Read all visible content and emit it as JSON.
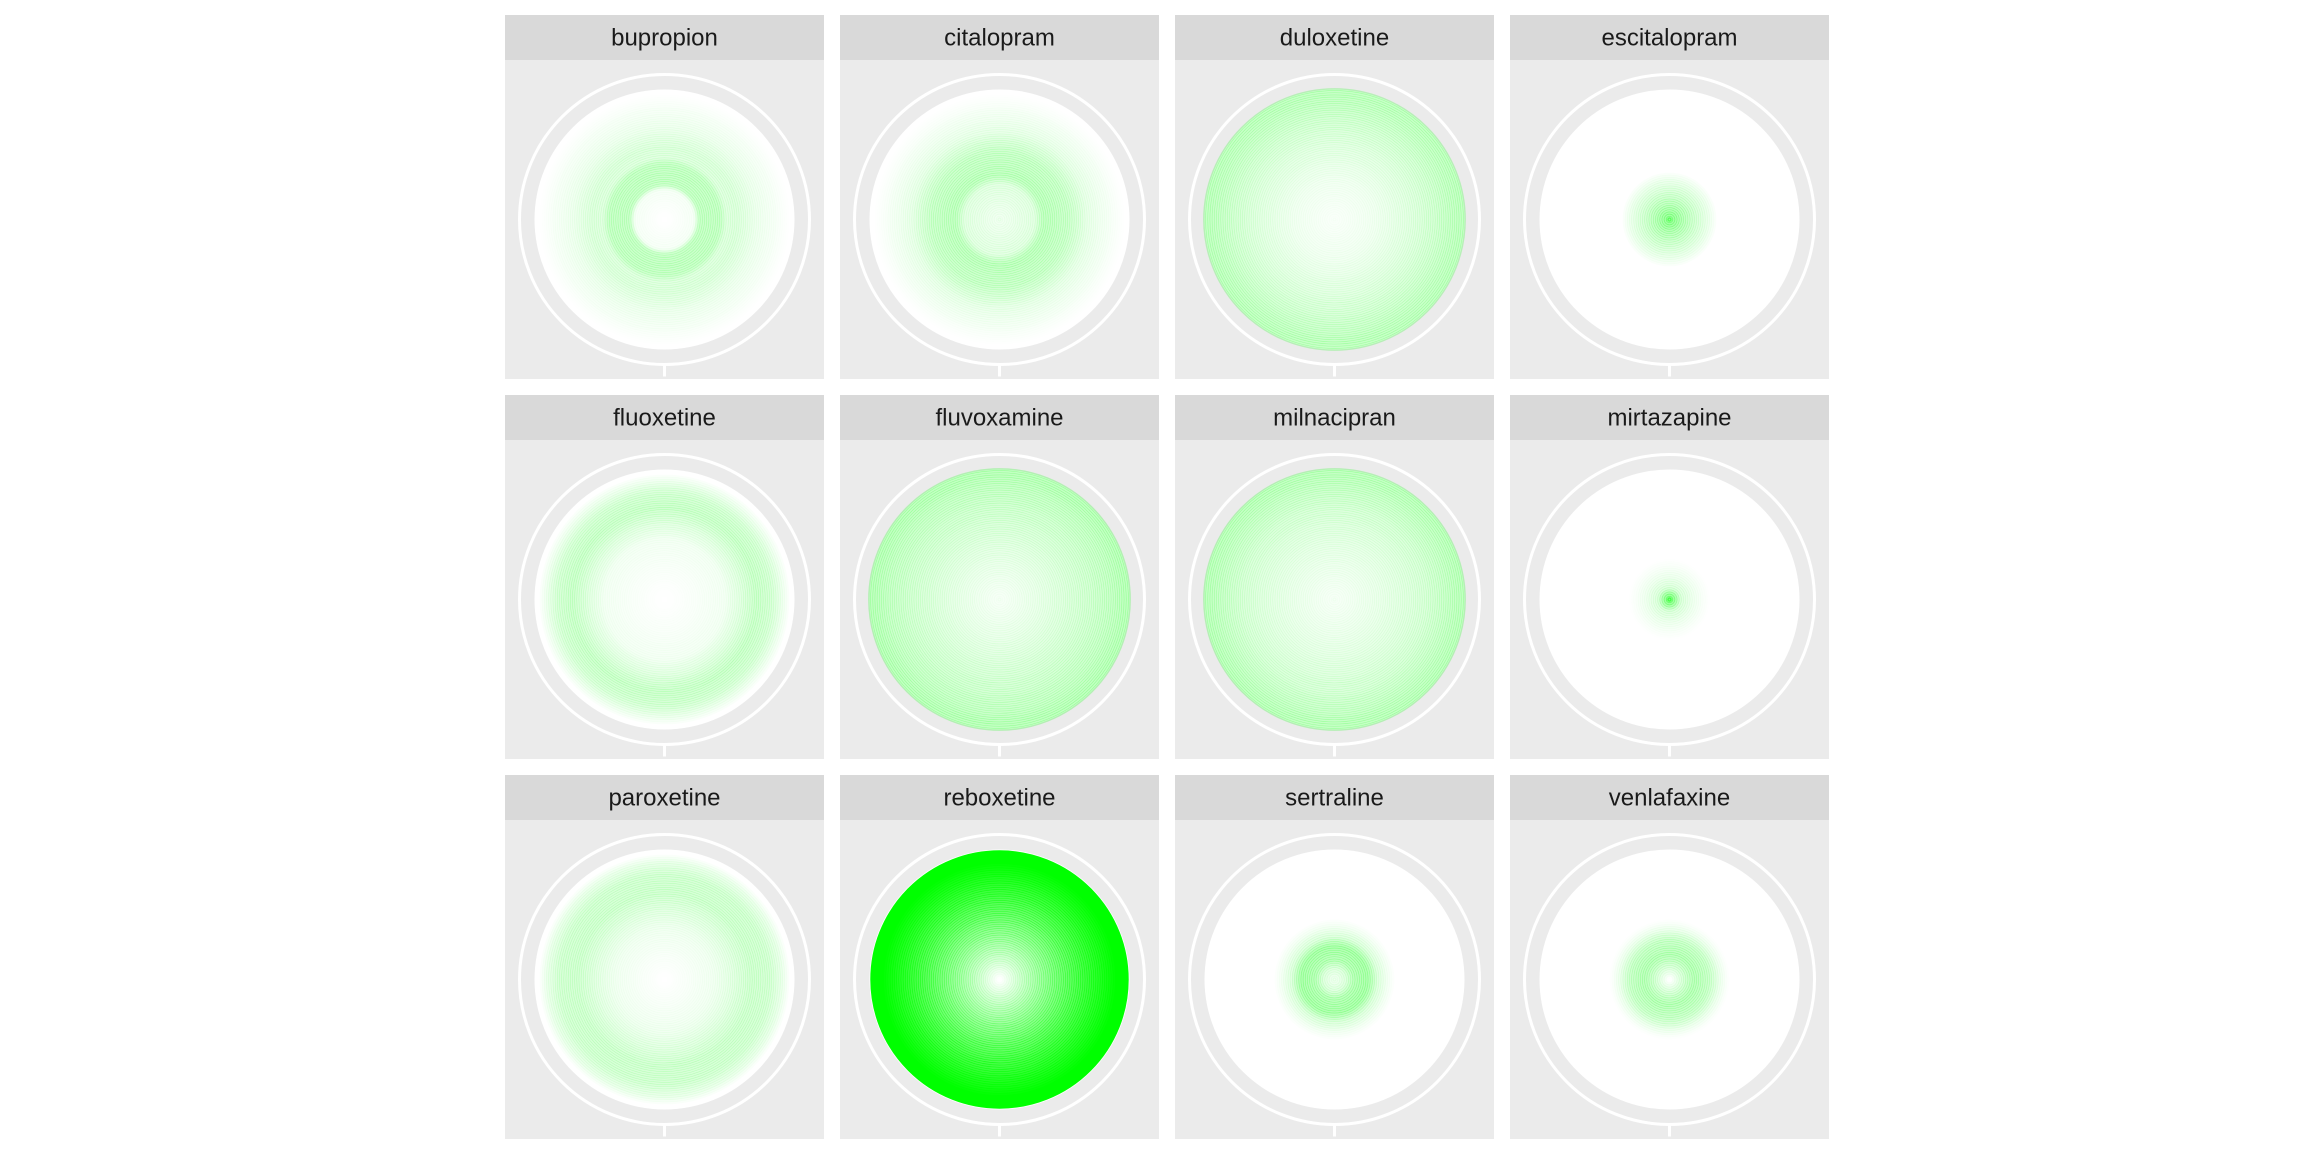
{
  "chart_data": {
    "type": "radial-density",
    "facet_layout": {
      "columns": 4,
      "rows": 3
    },
    "colors": {
      "panel_background": "#EBEBEB",
      "strip_background": "#D9D9D9",
      "strip_text": "#1A1A1A",
      "plot_fill": "#FFFFFF",
      "grid": "#FFFFFF",
      "density": "#00FF00"
    },
    "facets": [
      {
        "label": "bupropion",
        "rings": [
          [
            0.0,
            0.0
          ],
          [
            0.22,
            0.03
          ],
          [
            0.26,
            0.2
          ],
          [
            0.42,
            0.2
          ],
          [
            0.47,
            0.11
          ],
          [
            0.55,
            0.12
          ],
          [
            0.7,
            0.06
          ],
          [
            0.84,
            0.03
          ],
          [
            0.96,
            0.0
          ]
        ]
      },
      {
        "label": "citalopram",
        "rings": [
          [
            0.0,
            0.05
          ],
          [
            0.26,
            0.1
          ],
          [
            0.33,
            0.22
          ],
          [
            0.52,
            0.18
          ],
          [
            0.67,
            0.08
          ],
          [
            0.8,
            0.04
          ],
          [
            0.96,
            0.0
          ]
        ]
      },
      {
        "label": "duloxetine",
        "rings": [
          [
            0.0,
            0.02
          ],
          [
            0.3,
            0.05
          ],
          [
            0.55,
            0.1
          ],
          [
            0.75,
            0.15
          ],
          [
            0.86,
            0.19
          ],
          [
            0.96,
            0.22
          ]
        ]
      },
      {
        "label": "escitalopram",
        "rings": [
          [
            0.0,
            0.4
          ],
          [
            0.1,
            0.24
          ],
          [
            0.2,
            0.14
          ],
          [
            0.3,
            0.06
          ],
          [
            0.36,
            0.0
          ]
        ]
      },
      {
        "label": "fluoxetine",
        "rings": [
          [
            0.0,
            0.0
          ],
          [
            0.45,
            0.04
          ],
          [
            0.57,
            0.1
          ],
          [
            0.7,
            0.18
          ],
          [
            0.82,
            0.14
          ],
          [
            0.9,
            0.06
          ],
          [
            0.96,
            0.0
          ]
        ]
      },
      {
        "label": "fluvoxamine",
        "rings": [
          [
            0.0,
            0.03
          ],
          [
            0.3,
            0.08
          ],
          [
            0.5,
            0.12
          ],
          [
            0.7,
            0.16
          ],
          [
            0.85,
            0.2
          ],
          [
            0.96,
            0.24
          ]
        ]
      },
      {
        "label": "milnacipran",
        "rings": [
          [
            0.0,
            0.03
          ],
          [
            0.3,
            0.07
          ],
          [
            0.5,
            0.1
          ],
          [
            0.7,
            0.14
          ],
          [
            0.85,
            0.19
          ],
          [
            0.96,
            0.23
          ]
        ]
      },
      {
        "label": "mirtazapine",
        "rings": [
          [
            0.0,
            0.5
          ],
          [
            0.08,
            0.12
          ],
          [
            0.18,
            0.05
          ],
          [
            0.3,
            0.0
          ]
        ]
      },
      {
        "label": "paroxetine",
        "rings": [
          [
            0.0,
            0.0
          ],
          [
            0.38,
            0.05
          ],
          [
            0.52,
            0.1
          ],
          [
            0.66,
            0.16
          ],
          [
            0.8,
            0.15
          ],
          [
            0.9,
            0.07
          ],
          [
            0.96,
            0.0
          ]
        ]
      },
      {
        "label": "reboxetine",
        "rings": [
          [
            0.0,
            0.0
          ],
          [
            0.89,
            1.0
          ],
          [
            0.98,
            1.0
          ],
          [
            0.985,
            0.0
          ]
        ]
      },
      {
        "label": "sertraline",
        "rings": [
          [
            0.0,
            0.05
          ],
          [
            0.08,
            0.12
          ],
          [
            0.14,
            0.25
          ],
          [
            0.25,
            0.3
          ],
          [
            0.32,
            0.12
          ],
          [
            0.4,
            0.04
          ],
          [
            0.46,
            0.0
          ]
        ]
      },
      {
        "label": "venlafaxine",
        "rings": [
          [
            0.0,
            0.0
          ],
          [
            0.08,
            0.12
          ],
          [
            0.18,
            0.25
          ],
          [
            0.3,
            0.18
          ],
          [
            0.38,
            0.06
          ],
          [
            0.45,
            0.0
          ]
        ]
      }
    ]
  }
}
